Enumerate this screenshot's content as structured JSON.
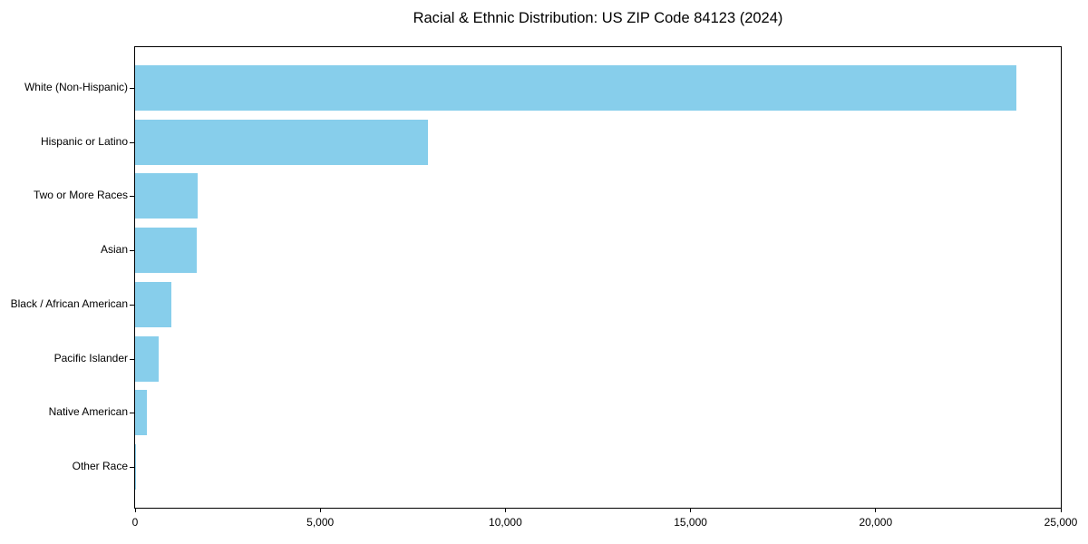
{
  "chart_data": {
    "type": "bar",
    "orientation": "horizontal",
    "title": "Racial & Ethnic Distribution: US ZIP Code 84123 (2024)",
    "categories": [
      "White (Non-Hispanic)",
      "Hispanic or Latino",
      "Two or More Races",
      "Asian",
      "Black / African American",
      "Pacific Islander",
      "Native American",
      "Other Race"
    ],
    "values": [
      23800,
      7900,
      1700,
      1670,
      980,
      640,
      320,
      25
    ],
    "xlabel": "",
    "ylabel": "",
    "xlim": [
      0,
      25000
    ],
    "xticks": [
      0,
      5000,
      10000,
      15000,
      20000,
      25000
    ],
    "xtick_labels": [
      "0",
      "5,000",
      "10,000",
      "15,000",
      "20,000",
      "25,000"
    ],
    "bar_color": "#87CEEB",
    "grid": false,
    "legend_position": "none",
    "background_color": "#ffffff"
  }
}
